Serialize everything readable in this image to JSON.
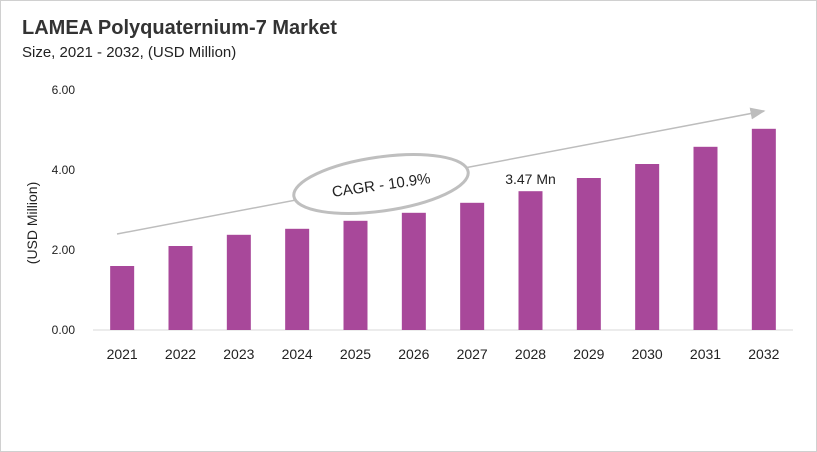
{
  "chart_data": {
    "type": "bar",
    "title": "LAMEA Polyquaternium-7 Market",
    "subtitle": "Size, 2021 - 2032, (USD Million)",
    "ylabel": "(USD Million)",
    "xlabel": "",
    "categories": [
      "2021",
      "2022",
      "2023",
      "2024",
      "2025",
      "2026",
      "2027",
      "2028",
      "2029",
      "2030",
      "2031",
      "2032"
    ],
    "values": [
      1.6,
      2.1,
      2.38,
      2.53,
      2.73,
      2.93,
      3.18,
      3.47,
      3.8,
      4.15,
      4.58,
      5.03
    ],
    "ylim": [
      0,
      6
    ],
    "yticks": [
      "0.00",
      "2.00",
      "4.00",
      "6.00"
    ],
    "grid": false,
    "bar_color": "#a8489a",
    "annotations": {
      "cagr": "CAGR - 10.9%",
      "value_label": "3.47 Mn",
      "value_label_category": "2028"
    }
  }
}
